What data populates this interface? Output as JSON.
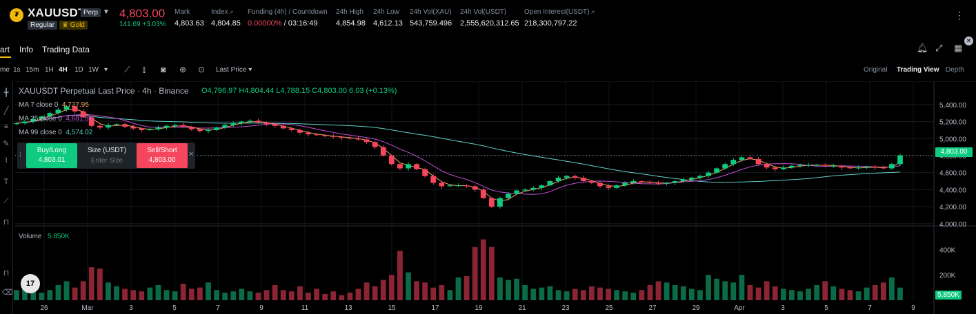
{
  "header": {
    "coin_glyph": "₮",
    "symbol": "XAUUSDT",
    "badge_perp": "Perp",
    "badge_regular": "Regular",
    "badge_gold": "Gold",
    "last_price": "4,803.00",
    "change": "141.69 +3.03%",
    "stats": [
      {
        "label": "Mark",
        "value": "4,803.63"
      },
      {
        "label": "Index",
        "value": "4,804.85"
      },
      {
        "label": "Funding (4h) / Countdown",
        "value_rate": "0.00000%",
        "value_countdown": " / 03:16:49"
      },
      {
        "label": "24h High",
        "value": "4,854.98"
      },
      {
        "label": "24h Low",
        "value": "4,612.13"
      },
      {
        "label": "24h Vol(XAU)",
        "value": "543,759.496"
      },
      {
        "label": "24h Vol(USDT)",
        "value": "2,555,620,312.65"
      },
      {
        "label": "Open Interest(USDT)",
        "value": "218,300,797.22"
      }
    ]
  },
  "tabs": [
    {
      "label": "art"
    },
    {
      "label": "Info"
    },
    {
      "label": "Trading Data"
    }
  ],
  "toolbar": {
    "intervals": [
      "me",
      "1s",
      "15m",
      "1H",
      "4H",
      "1D",
      "1W"
    ],
    "active_interval": "4H",
    "price_type": "Last Price",
    "views": [
      "Original",
      "Trading View",
      "Depth"
    ],
    "active_view": "Trading View"
  },
  "legend": {
    "title": "XAUUSDT Perpetual Last Price · 4h · Binance",
    "ohlc": "O4,796.97 H4,804.44 L4,788.15 C4,803.00 6.03 (+0.13%)",
    "ma7_label": "MA 7 close 0",
    "ma7_value": "4,727.95",
    "ma25_label": "MA 25 close 0",
    "ma25_value": "4,681.58",
    "ma99_label": "MA 99 close 0",
    "ma99_value": "4,574.02",
    "ma_colors": {
      "ma7": "#F0A35E",
      "ma25": "#C252D6",
      "ma99": "#5FD3C8"
    }
  },
  "trade_panel": {
    "buy_label": "Buy/Long",
    "buy_price": "4,803.01",
    "size_label": "Size (USDT)",
    "size_placeholder": "Enter Size",
    "sell_label": "Sell/Short",
    "sell_price": "4,803.00"
  },
  "volume": {
    "label": "Volume",
    "value": "5.850K",
    "tag": "5.850K"
  },
  "price_tag": "4,803.00",
  "colors": {
    "up": "#0ECB81",
    "down": "#F6465D",
    "bg": "#000000"
  },
  "chart_data": {
    "type": "candlestick",
    "x_ticks": [
      "26",
      "Mar",
      "3",
      "5",
      "7",
      "9",
      "11",
      "13",
      "15",
      "17",
      "19",
      "21",
      "23",
      "25",
      "27",
      "29",
      "Apr",
      "3",
      "5",
      "7",
      "9"
    ],
    "y_ticks": [
      "5,400.00",
      "5,200.00",
      "5,000.00",
      "4,800.00",
      "4,600.00",
      "4,400.00",
      "4,200.00",
      "4,000.00"
    ],
    "ylim": [
      3990,
      5480
    ],
    "volume_ticks": [
      "400K",
      "200K"
    ],
    "volume_ylim": [
      0,
      500000
    ],
    "close_series": [
      5180,
      5200,
      5230,
      5260,
      5300,
      5340,
      5380,
      5320,
      5250,
      5150,
      5130,
      5160,
      5170,
      5140,
      5120,
      5100,
      5110,
      5130,
      5150,
      5160,
      5140,
      5110,
      5090,
      5100,
      5130,
      5160,
      5180,
      5200,
      5210,
      5190,
      5170,
      5150,
      5120,
      5100,
      5070,
      5050,
      5040,
      5030,
      5020,
      5010,
      5000,
      4990,
      4960,
      4900,
      4800,
      4700,
      4650,
      4700,
      4640,
      4560,
      4480,
      4440,
      4450,
      4450,
      4440,
      4400,
      4300,
      4200,
      4300,
      4350,
      4390,
      4400,
      4420,
      4450,
      4500,
      4540,
      4560,
      4540,
      4500,
      4480,
      4440,
      4420,
      4450,
      4480,
      4500,
      4490,
      4480,
      4470,
      4480,
      4500,
      4520,
      4540,
      4560,
      4600,
      4650,
      4700,
      4750,
      4780,
      4760,
      4700,
      4660,
      4640,
      4660,
      4680,
      4690,
      4690,
      4690,
      4680,
      4680,
      4660,
      4650,
      4660,
      4670,
      4660,
      4650,
      4700,
      4803
    ],
    "volume_series": [
      80,
      90,
      100,
      60,
      80,
      120,
      150,
      100,
      150,
      260,
      250,
      140,
      110,
      90,
      80,
      70,
      100,
      120,
      80,
      70,
      130,
      90,
      100,
      140,
      80,
      60,
      70,
      90,
      70,
      60,
      80,
      120,
      80,
      70,
      110,
      60,
      90,
      50,
      70,
      40,
      60,
      90,
      140,
      110,
      160,
      200,
      390,
      220,
      150,
      140,
      100,
      120,
      80,
      180,
      190,
      420,
      480,
      420,
      180,
      160,
      170,
      120,
      90,
      100,
      110,
      80,
      70,
      90,
      80,
      110,
      100,
      90,
      80,
      70,
      60,
      80,
      120,
      150,
      140,
      120,
      110,
      90,
      80,
      200,
      170,
      150,
      140,
      200,
      120,
      100,
      150,
      110,
      90,
      80,
      70,
      90,
      120,
      150,
      110,
      90,
      80,
      70,
      100,
      120,
      140,
      180,
      100
    ]
  }
}
